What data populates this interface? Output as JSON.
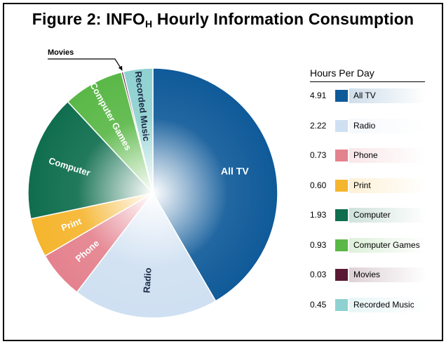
{
  "figure": {
    "title_prefix": "Figure 2:  INFO",
    "title_sub": "H",
    "title_suffix": " Hourly Information Consumption"
  },
  "legend": {
    "title": "Hours Per Day"
  },
  "chart_data": {
    "type": "pie",
    "title": "Figure 2:  INFOH Hourly Information Consumption",
    "unit": "Hours Per Day",
    "legend_placement": "right",
    "slices": [
      {
        "label": "All TV",
        "value": 4.91,
        "display": "4.91",
        "color": "#0f5a99"
      },
      {
        "label": "Radio",
        "value": 2.22,
        "display": "2.22",
        "color": "#cfe0f2"
      },
      {
        "label": "Phone",
        "value": 0.73,
        "display": "0.73",
        "color": "#e4828e"
      },
      {
        "label": "Print",
        "value": 0.6,
        "display": "0.60",
        "color": "#f5b52e"
      },
      {
        "label": "Computer",
        "value": 1.93,
        "display": "1.93",
        "color": "#0f6e4e"
      },
      {
        "label": "Computer Games",
        "value": 0.93,
        "display": "0.93",
        "color": "#5ab847"
      },
      {
        "label": "Movies",
        "value": 0.03,
        "display": "0.03",
        "color": "#5b1a33"
      },
      {
        "label": "Recorded Music",
        "value": 0.45,
        "display": "0.45",
        "color": "#8fd1d1"
      }
    ]
  }
}
